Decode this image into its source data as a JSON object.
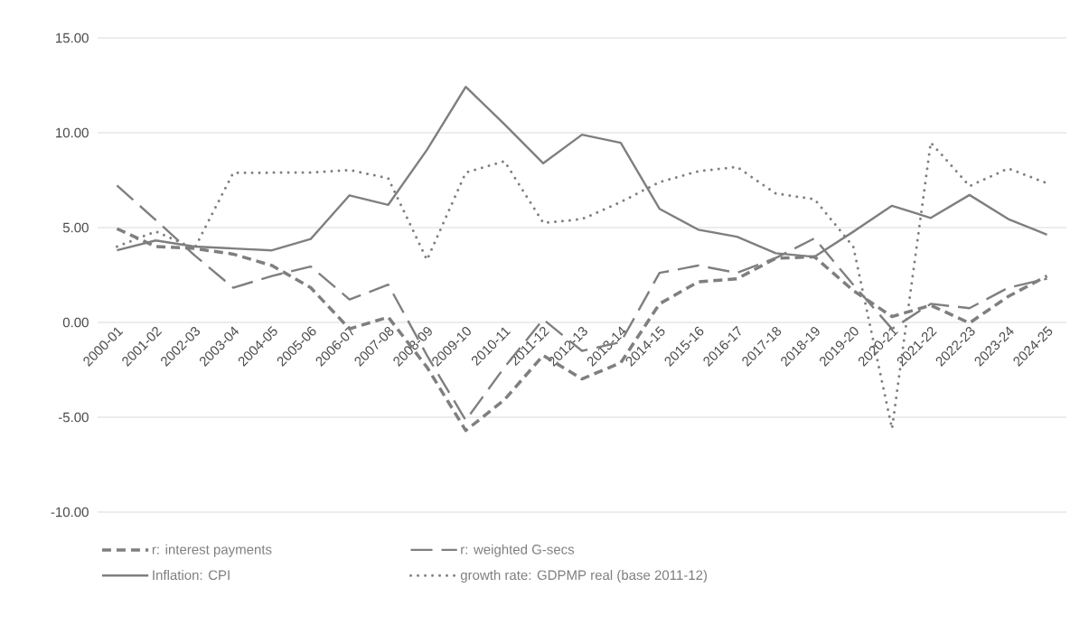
{
  "chart_data": {
    "type": "line",
    "categories": [
      "2000-01",
      "2001-02",
      "2002-03",
      "2003-04",
      "2004-05",
      "2005-06",
      "2006-07",
      "2007-08",
      "2008-09",
      "2009-10",
      "2010-11",
      "2011-12",
      "2012-13",
      "2013-14",
      "2014-15",
      "2015-16",
      "2016-17",
      "2017-18",
      "2018-19",
      "2019-20",
      "2020-21",
      "2021-22",
      "2022-23",
      "2023-24",
      "2024-25"
    ],
    "series": [
      {
        "name": "r: interest payments",
        "color": "#7f7f7f",
        "line_style": "dashed",
        "values": [
          4.94,
          4.0,
          3.9,
          3.6,
          3.0,
          1.83,
          -0.34,
          0.28,
          -2.36,
          -5.7,
          -4.07,
          -1.74,
          -2.98,
          -2.13,
          0.98,
          2.14,
          2.3,
          3.38,
          3.46,
          1.68,
          0.31,
          0.9,
          -0.03,
          1.37,
          2.45
        ]
      },
      {
        "name": "r: weighted G-secs",
        "color": "#7f7f7f",
        "line_style": "dashed",
        "values": [
          7.22,
          5.4,
          3.54,
          1.83,
          2.45,
          2.95,
          1.21,
          1.99,
          -1.74,
          -5.16,
          -2.36,
          0.16,
          -1.5,
          -1.04,
          2.61,
          3.0,
          2.61,
          3.4,
          4.43,
          1.99,
          -0.34,
          0.98,
          0.75,
          1.83,
          2.3
        ]
      },
      {
        "name": "Inflation: CPI",
        "color": "#7f7f7f",
        "line_style": "solid",
        "values": [
          3.8,
          4.32,
          4.0,
          3.9,
          3.8,
          4.4,
          6.7,
          6.2,
          9.1,
          12.42,
          10.45,
          8.39,
          9.9,
          9.47,
          5.99,
          4.89,
          4.52,
          3.65,
          3.46,
          4.78,
          6.15,
          5.51,
          6.72,
          5.45,
          4.63
        ]
      },
      {
        "name": "growth rate: GDPMP real (base 2011-12)",
        "color": "#7f7f7f",
        "line_style": "dotted",
        "values": [
          4.0,
          4.8,
          3.9,
          7.89,
          7.9,
          7.9,
          8.04,
          7.6,
          3.3,
          7.9,
          8.5,
          5.25,
          5.45,
          6.35,
          7.4,
          7.97,
          8.2,
          6.8,
          6.5,
          4.0,
          -5.6,
          9.49,
          7.19,
          8.12,
          7.34
        ]
      }
    ],
    "ylim": [
      -10,
      15
    ],
    "yticks": [
      {
        "value": -10,
        "label": "-10.00"
      },
      {
        "value": -5,
        "label": "-5.00"
      },
      {
        "value": 0,
        "label": "0.00"
      },
      {
        "value": 5,
        "label": "5.00"
      },
      {
        "value": 10,
        "label": "10.00"
      },
      {
        "value": 15,
        "label": "15.00"
      }
    ],
    "grid": "y",
    "legend": "bottom"
  }
}
